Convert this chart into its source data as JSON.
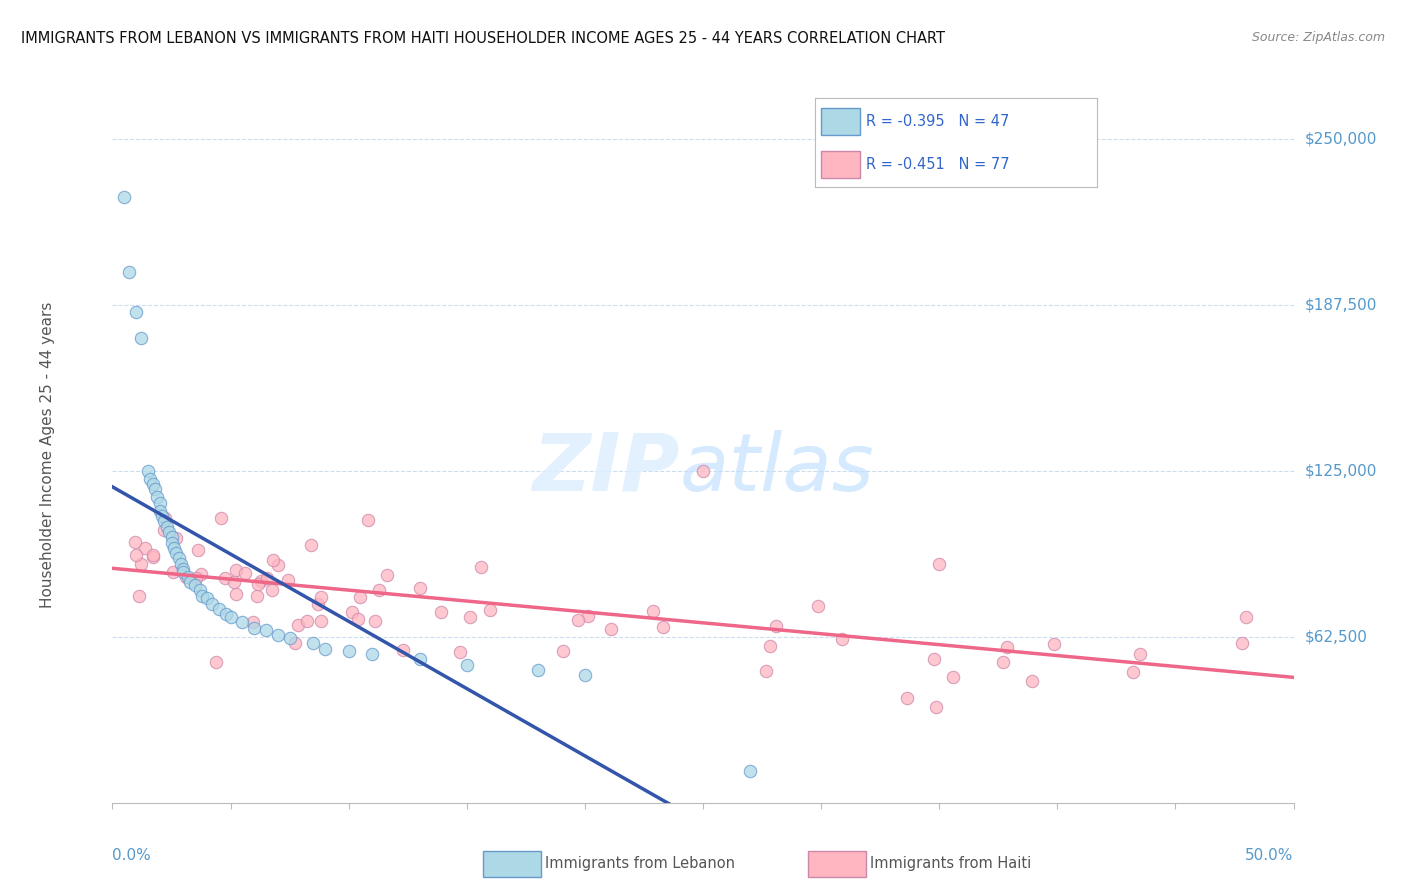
{
  "title": "IMMIGRANTS FROM LEBANON VS IMMIGRANTS FROM HAITI HOUSEHOLDER INCOME AGES 25 - 44 YEARS CORRELATION CHART",
  "source": "Source: ZipAtlas.com",
  "ylabel": "Householder Income Ages 25 - 44 years",
  "xmin": 0.0,
  "xmax": 0.5,
  "ymin": 0,
  "ymax": 262000,
  "lebanon_fill_color": "#ADD8E6",
  "lebanon_edge_color": "#6699CC",
  "haiti_fill_color": "#FFB6C1",
  "haiti_edge_color": "#CC88AA",
  "lebanon_line_color": "#3355AA",
  "haiti_line_color": "#EE6688",
  "legend_color": "#3366CC",
  "tick_label_color": "#5599CC",
  "grid_color": "#CCDDEE",
  "watermark_zip": "ZIP",
  "watermark_atlas": "atlas",
  "legend_R_lebanon": "R = -0.395",
  "legend_N_lebanon": "N = 47",
  "legend_R_haiti": "R = -0.451",
  "legend_N_haiti": "N = 77"
}
